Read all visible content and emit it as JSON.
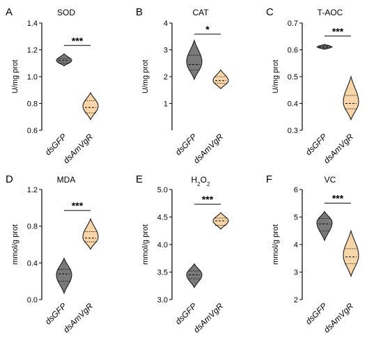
{
  "figure": {
    "colors": {
      "control": "#7a7a7a",
      "treatment": "#f9d6a9",
      "outline": "#1a1a1a"
    },
    "panels": [
      "A",
      "B",
      "C",
      "D",
      "E",
      "F"
    ]
  },
  "chart_data": [
    {
      "type": "violin",
      "letter": "A",
      "title": "SOD",
      "title_sub": "",
      "ylabel": "U/mg prot",
      "ylim": [
        0.6,
        1.4
      ],
      "yticks": [
        "0.6",
        "0.8",
        "1.0",
        "1.2",
        "1.4"
      ],
      "categories": [
        "dsGFP",
        "dsAmVgR"
      ],
      "significance": "***",
      "series": [
        {
          "category": "dsGFP",
          "min": 1.08,
          "q1": 1.1,
          "median": 1.12,
          "q3": 1.135,
          "max": 1.17,
          "mode": 1.12
        },
        {
          "category": "dsAmVgR",
          "min": 0.68,
          "q1": 0.73,
          "median": 0.77,
          "q3": 0.82,
          "max": 0.88,
          "mode": 0.78
        }
      ]
    },
    {
      "type": "violin",
      "letter": "B",
      "title": "CAT",
      "title_sub": "",
      "ylabel": "U/mg prot",
      "ylim": [
        0,
        4
      ],
      "yticks": [
        "1",
        "2",
        "3",
        "4"
      ],
      "categories": [
        "dsGFP",
        "dsAmVgR"
      ],
      "significance": "*",
      "series": [
        {
          "category": "dsGFP",
          "min": 1.9,
          "q1": 2.25,
          "median": 2.45,
          "q3": 2.8,
          "max": 3.35,
          "mode": 2.55
        },
        {
          "category": "dsAmVgR",
          "min": 1.55,
          "q1": 1.75,
          "median": 1.85,
          "q3": 2.0,
          "max": 2.25,
          "mode": 1.85
        }
      ]
    },
    {
      "type": "violin",
      "letter": "C",
      "title": "T-AOC",
      "title_sub": "",
      "ylabel": "U/mg prot",
      "ylim": [
        0.3,
        0.7
      ],
      "yticks": [
        "0.3",
        "0.4",
        "0.5",
        "0.6",
        "0.7"
      ],
      "categories": [
        "dsGFP",
        "dsAmVgR"
      ],
      "significance": "***",
      "series": [
        {
          "category": "dsGFP",
          "min": 0.602,
          "q1": 0.607,
          "median": 0.611,
          "q3": 0.615,
          "max": 0.62,
          "mode": 0.611
        },
        {
          "category": "dsAmVgR",
          "min": 0.34,
          "q1": 0.38,
          "median": 0.4,
          "q3": 0.43,
          "max": 0.5,
          "mode": 0.405
        }
      ]
    },
    {
      "type": "violin",
      "letter": "D",
      "title": "MDA",
      "title_sub": "",
      "ylabel": "mmol/g prot",
      "ylim": [
        0,
        1.2
      ],
      "yticks": [
        "0.0",
        "0.4",
        "0.8",
        "1.2"
      ],
      "categories": [
        "dsGFP",
        "dsAmVgR"
      ],
      "significance": "***",
      "series": [
        {
          "category": "dsGFP",
          "min": 0.07,
          "q1": 0.2,
          "median": 0.28,
          "q3": 0.33,
          "max": 0.45,
          "mode": 0.27
        },
        {
          "category": "dsAmVgR",
          "min": 0.55,
          "q1": 0.63,
          "median": 0.67,
          "q3": 0.74,
          "max": 0.88,
          "mode": 0.68
        }
      ]
    },
    {
      "type": "violin",
      "letter": "E",
      "title": "H",
      "title_sub": "2",
      "title_mid": "O",
      "title_sub2": "2",
      "ylabel": "mmol/g prot",
      "ylim": [
        3.0,
        5.0
      ],
      "yticks": [
        "3.0",
        "3.5",
        "4.0",
        "4.5",
        "5.0"
      ],
      "categories": [
        "dsGFP",
        "dsAmVgR"
      ],
      "significance": "***",
      "series": [
        {
          "category": "dsGFP",
          "min": 3.22,
          "q1": 3.38,
          "median": 3.45,
          "q3": 3.52,
          "max": 3.65,
          "mode": 3.45
        },
        {
          "category": "dsAmVgR",
          "min": 4.28,
          "q1": 4.35,
          "median": 4.43,
          "q3": 4.48,
          "max": 4.58,
          "mode": 4.43
        }
      ]
    },
    {
      "type": "violin",
      "letter": "F",
      "title": "VC",
      "title_sub": "",
      "ylabel": "mmol/g prot",
      "ylim": [
        2,
        6
      ],
      "yticks": [
        "2",
        "3",
        "4",
        "5",
        "6"
      ],
      "categories": [
        "dsGFP",
        "dsAmVgR"
      ],
      "significance": "***",
      "series": [
        {
          "category": "dsGFP",
          "min": 4.15,
          "q1": 4.5,
          "median": 4.75,
          "q3": 4.95,
          "max": 5.2,
          "mode": 4.8
        },
        {
          "category": "dsAmVgR",
          "min": 2.85,
          "q1": 3.3,
          "median": 3.55,
          "q3": 3.85,
          "max": 4.5,
          "mode": 3.6
        }
      ]
    }
  ]
}
